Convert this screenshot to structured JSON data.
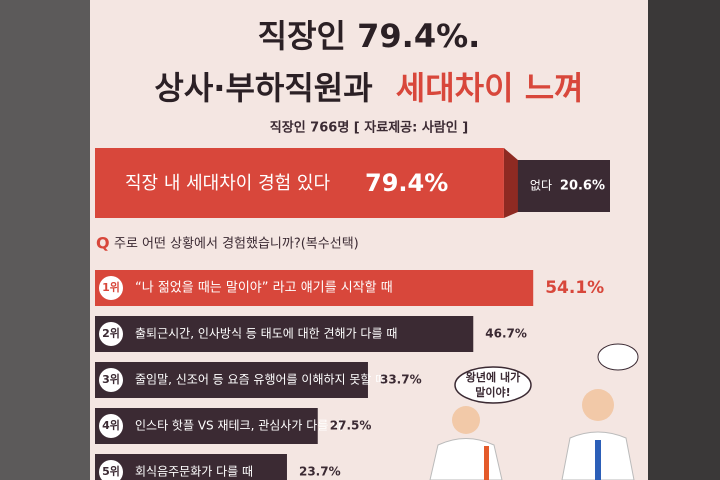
{
  "header": {
    "title_line1": "직장인 79.4%.",
    "title_line2_a": "상사·부하직원과",
    "title_line2_b": "세대차이 느껴",
    "source": "직장인 766명  [ 자료제공: 사람인 ]"
  },
  "chart_data": [
    {
      "type": "split-bar",
      "categories": [
        "직장 내 세대차이 경험 있다",
        "없다"
      ],
      "values": [
        79.4,
        20.6
      ],
      "value_labels": [
        "79.4%",
        "20.6%"
      ],
      "colors": [
        "#d8473b",
        "#3b2a33"
      ]
    },
    {
      "type": "hbar",
      "title_prefix": "Q",
      "title": "주로 어떤 상황에서 경험했습니까?(복수선택)",
      "ranks": [
        "1위",
        "2위",
        "3위",
        "4위",
        "5위"
      ],
      "categories": [
        "“나 젊었을 때는 말이야” 라고 얘기를 시작할 때",
        "출퇴근시간, 인사방식 등 태도에 대한 견해가 다를 때",
        "줄임말, 신조어 등 요즘 유행어를 이해하지 못할 때",
        "인스타 핫플 VS 재테크, 관심사가 다를 때",
        "회식음주문화가 다를 때"
      ],
      "values": [
        54.1,
        46.7,
        33.7,
        27.5,
        23.7
      ],
      "value_labels": [
        "54.1%",
        "46.7%",
        "33.7%",
        "27.5%",
        "23.7%"
      ],
      "colors": [
        "#d8473b",
        "#3b2a33",
        "#3b2a33",
        "#3b2a33",
        "#3b2a33"
      ]
    }
  ],
  "illustration": {
    "bubble": [
      "왕년에 내가",
      "말이야!"
    ]
  }
}
